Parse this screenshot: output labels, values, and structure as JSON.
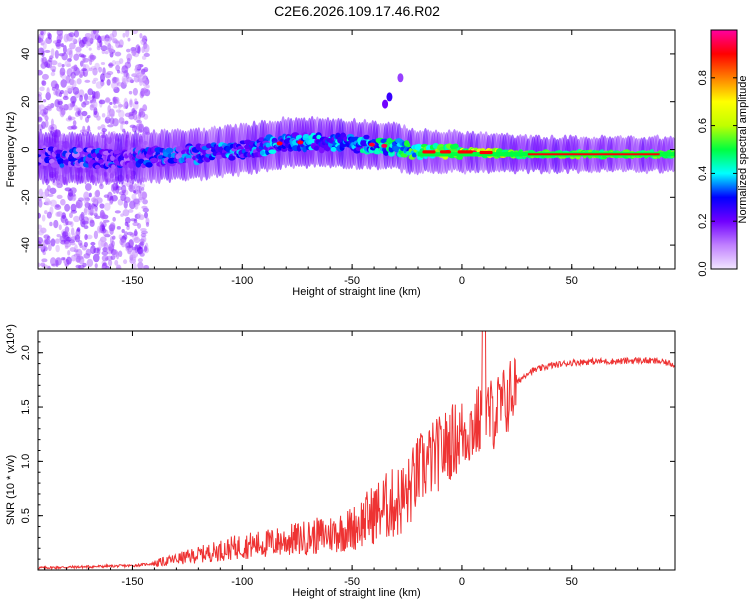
{
  "title": "C2E6.2026.109.17.46.R02",
  "chart_data": [
    {
      "type": "heatmap",
      "xlabel": "Height of straight line (km)",
      "ylabel": "Frequency (Hz)",
      "xlim": [
        -193,
        97
      ],
      "ylim": [
        -50,
        50
      ],
      "xticks": [
        -150,
        -100,
        -50,
        0,
        50
      ],
      "yticks": [
        -40,
        -20,
        0,
        20,
        40
      ],
      "colorbar": {
        "label": "Normalized spectral amplitude",
        "range": [
          0.0,
          1.0
        ],
        "ticks": [
          0.0,
          0.2,
          0.4,
          0.6,
          0.8
        ],
        "tick_labels": [
          "0.0",
          "0.2",
          "0.4",
          "0.6",
          "0.8"
        ],
        "colors": [
          "#f2e6ff",
          "#c080ff",
          "#7000ff",
          "#0000ff",
          "#00ffff",
          "#00ff40",
          "#c0ff00",
          "#ffff00",
          "#ff8000",
          "#ff0000",
          "#ff00a0"
        ]
      },
      "ridge": {
        "points": [
          {
            "x": -193,
            "y": -3
          },
          {
            "x": -160,
            "y": -4
          },
          {
            "x": -140,
            "y": -3
          },
          {
            "x": -120,
            "y": -2
          },
          {
            "x": -100,
            "y": 0
          },
          {
            "x": -80,
            "y": 3
          },
          {
            "x": -60,
            "y": 3
          },
          {
            "x": -40,
            "y": 2
          },
          {
            "x": -30,
            "y": 1
          },
          {
            "x": -20,
            "y": -1
          },
          {
            "x": 0,
            "y": -1
          },
          {
            "x": 30,
            "y": -2
          },
          {
            "x": 60,
            "y": -2
          },
          {
            "x": 97,
            "y": -2
          }
        ]
      },
      "isolated_features": [
        {
          "x": -33,
          "y": 22,
          "value": 0.25
        },
        {
          "x": -35,
          "y": 19,
          "value": 0.2
        },
        {
          "x": -28,
          "y": 30,
          "value": 0.15
        }
      ]
    },
    {
      "type": "line",
      "xlabel": "Height of straight line (km)",
      "ylabel": "SNR (10 * v/v)",
      "yscale_label": "(x10⁴)",
      "xlim": [
        -193,
        97
      ],
      "ylim": [
        0,
        2.2
      ],
      "xticks": [
        -150,
        -100,
        -50,
        0,
        50
      ],
      "yticks": [
        0.5,
        1.0,
        1.5,
        2.0
      ],
      "ytick_labels": [
        "0.5",
        "1.0",
        "1.5",
        "2.0"
      ],
      "series": [
        {
          "name": "SNR",
          "color": "#ee3333",
          "x": [
            -193,
            -170,
            -150,
            -140,
            -130,
            -120,
            -110,
            -100,
            -90,
            -80,
            -70,
            -60,
            -50,
            -45,
            -40,
            -35,
            -30,
            -25,
            -20,
            -15,
            -10,
            -5,
            0,
            5,
            10,
            15,
            20,
            25,
            30,
            40,
            50,
            60,
            70,
            80,
            90,
            97
          ],
          "y": [
            0.02,
            0.03,
            0.04,
            0.06,
            0.1,
            0.14,
            0.18,
            0.22,
            0.24,
            0.27,
            0.3,
            0.33,
            0.38,
            0.45,
            0.52,
            0.58,
            0.62,
            0.68,
            0.9,
            1.0,
            1.08,
            1.18,
            1.25,
            1.32,
            1.4,
            1.45,
            1.55,
            1.72,
            1.82,
            1.88,
            1.91,
            1.92,
            1.92,
            1.93,
            1.92,
            1.89
          ]
        }
      ]
    }
  ]
}
